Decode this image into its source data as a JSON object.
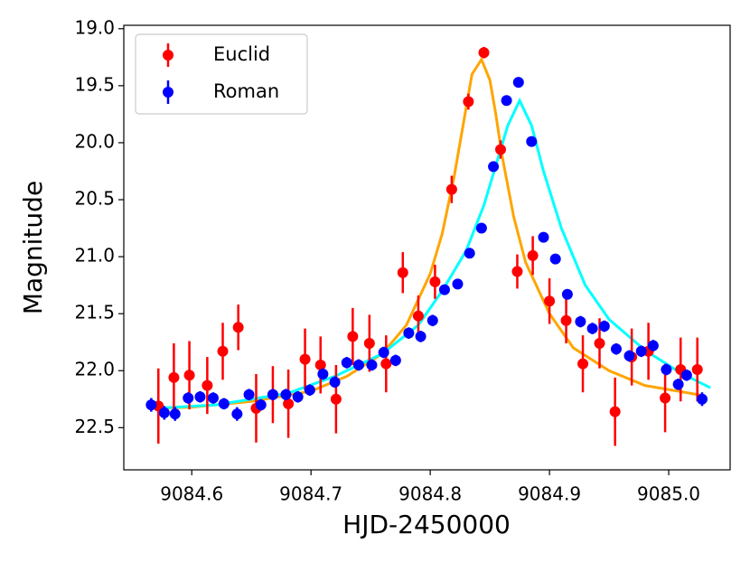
{
  "chart_data": {
    "type": "scatter",
    "xlabel": "HJD-2450000",
    "ylabel": "Magnitude",
    "xlim": [
      9084.543,
      9085.0515
    ],
    "ylim": [
      18.97,
      22.87
    ],
    "invert_y": true,
    "xticks": [
      9084.6,
      9084.7,
      9084.8,
      9084.9,
      {
        "value": 9085.0,
        "label": "9085.0"
      }
    ],
    "yticks": [
      {
        "value": 19.0,
        "label": "19.0"
      },
      19.5,
      {
        "value": 20.0,
        "label": "20.0"
      },
      20.5,
      {
        "value": 21.0,
        "label": "21.0"
      },
      21.5,
      {
        "value": 22.0,
        "label": "22.0"
      },
      22.5
    ],
    "legend": "upper left",
    "series": [
      {
        "name": "Euclid",
        "color": "#ff0000",
        "x": [
          9084.572,
          9084.585,
          9084.598,
          9084.613,
          9084.626,
          9084.639,
          9084.654,
          9084.668,
          9084.681,
          9084.695,
          9084.708,
          9084.721,
          9084.735,
          9084.749,
          9084.763,
          9084.777,
          9084.79,
          9084.804,
          9084.818,
          9084.832,
          9084.845,
          9084.859,
          9084.873,
          9084.886,
          9084.9,
          9084.914,
          9084.928,
          9084.942,
          9084.955,
          9084.969,
          9084.983,
          9084.997,
          9085.01,
          9085.024
        ],
        "values": [
          22.31,
          22.06,
          22.04,
          22.13,
          21.83,
          21.62,
          22.33,
          22.21,
          22.29,
          21.9,
          21.95,
          22.25,
          21.7,
          21.76,
          21.94,
          21.14,
          21.52,
          21.22,
          20.41,
          19.64,
          19.21,
          20.06,
          21.13,
          20.99,
          21.39,
          21.56,
          21.94,
          21.76,
          22.36,
          21.88,
          21.83,
          22.24,
          21.99,
          21.99
        ],
        "errors": [
          0.33,
          0.3,
          0.3,
          0.25,
          0.25,
          0.2,
          0.3,
          0.25,
          0.3,
          0.27,
          0.25,
          0.3,
          0.25,
          0.25,
          0.25,
          0.18,
          0.18,
          0.15,
          0.12,
          0.07,
          0.05,
          0.08,
          0.15,
          0.17,
          0.2,
          0.2,
          0.25,
          0.22,
          0.3,
          0.25,
          0.25,
          0.3,
          0.28,
          0.28
        ]
      },
      {
        "name": "Roman",
        "color": "#0000ff",
        "x": [
          9084.566,
          9084.577,
          9084.586,
          9084.597,
          9084.607,
          9084.618,
          9084.627,
          9084.638,
          9084.648,
          9084.658,
          9084.668,
          9084.679,
          9084.689,
          9084.699,
          9084.71,
          9084.72,
          9084.73,
          9084.74,
          9084.751,
          9084.761,
          9084.771,
          9084.782,
          9084.792,
          9084.802,
          9084.812,
          9084.823,
          9084.833,
          9084.843,
          9084.853,
          9084.864,
          9084.874,
          9084.885,
          9084.895,
          9084.905,
          9084.915,
          9084.926,
          9084.936,
          9084.946,
          9084.956,
          9084.967,
          9084.977,
          9084.987,
          9084.998,
          9085.008,
          9085.015,
          9085.028
        ],
        "values": [
          22.3,
          22.37,
          22.38,
          22.24,
          22.23,
          22.24,
          22.29,
          22.38,
          22.21,
          22.3,
          22.21,
          22.21,
          22.23,
          22.17,
          22.03,
          22.1,
          21.93,
          21.95,
          21.95,
          21.84,
          21.91,
          21.67,
          21.7,
          21.56,
          21.29,
          21.24,
          20.97,
          20.75,
          20.21,
          19.63,
          19.47,
          19.99,
          20.83,
          21.02,
          21.33,
          21.57,
          21.63,
          21.61,
          21.81,
          21.87,
          21.83,
          21.78,
          21.99,
          22.12,
          22.04,
          22.25
        ],
        "errors": [
          0.06,
          0.06,
          0.06,
          0.05,
          0.05,
          0.05,
          0.05,
          0.06,
          0.05,
          0.05,
          0.05,
          0.05,
          0.05,
          0.05,
          0.05,
          0.05,
          0.05,
          0.05,
          0.05,
          0.05,
          0.05,
          0.05,
          0.05,
          0.05,
          0.04,
          0.04,
          0.04,
          0.04,
          0.03,
          0.03,
          0.03,
          0.03,
          0.04,
          0.04,
          0.04,
          0.05,
          0.05,
          0.05,
          0.05,
          0.05,
          0.05,
          0.05,
          0.05,
          0.05,
          0.05,
          0.06
        ]
      }
    ],
    "curves": [
      {
        "color": "#ffa500",
        "x": [
          9084.57,
          9084.6,
          9084.65,
          9084.7,
          9084.73,
          9084.76,
          9084.78,
          9084.8,
          9084.81,
          9084.82,
          9084.83,
          9084.835,
          9084.843,
          9084.85,
          9084.855,
          9084.86,
          9084.87,
          9084.88,
          9084.9,
          9084.92,
          9084.95,
          9084.98,
          9085.03
        ],
        "values": [
          22.33,
          22.32,
          22.27,
          22.18,
          22.05,
          21.85,
          21.6,
          21.15,
          20.8,
          20.3,
          19.7,
          19.4,
          19.27,
          19.45,
          19.75,
          20.1,
          20.65,
          21.05,
          21.5,
          21.8,
          22.0,
          22.13,
          22.22
        ]
      },
      {
        "color": "#00ffff",
        "x": [
          9084.57,
          9084.62,
          9084.68,
          9084.72,
          9084.76,
          9084.79,
          9084.81,
          9084.83,
          9084.845,
          9084.855,
          9084.865,
          9084.875,
          9084.885,
          9084.895,
          9084.91,
          9084.93,
          9084.95,
          9084.98,
          9085.01,
          9085.035
        ],
        "values": [
          22.33,
          22.3,
          22.2,
          22.05,
          21.85,
          21.6,
          21.3,
          20.95,
          20.55,
          20.2,
          19.85,
          19.63,
          19.85,
          20.25,
          20.75,
          21.25,
          21.55,
          21.82,
          22.02,
          22.15
        ]
      }
    ]
  }
}
